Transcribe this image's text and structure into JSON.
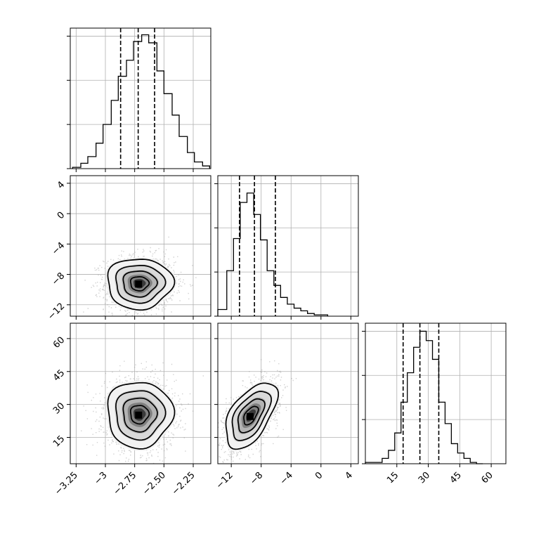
{
  "chart_data": [
    {
      "type": "histogram",
      "panel": "hist-param-1",
      "x_range": [
        -3.3,
        -2.1
      ],
      "x_ticks": [
        -3.25,
        -3.0,
        -2.75,
        -2.5,
        -2.25
      ],
      "grid": true,
      "bin_edges": [
        -3.28,
        -3.21,
        -3.15,
        -3.08,
        -3.02,
        -2.95,
        -2.89,
        -2.82,
        -2.76,
        -2.69,
        -2.63,
        -2.56,
        -2.5,
        -2.43,
        -2.37,
        -2.3,
        -2.24,
        -2.17,
        -2.11
      ],
      "counts": [
        0.01,
        0.04,
        0.09,
        0.19,
        0.33,
        0.51,
        0.69,
        0.81,
        0.95,
        1.0,
        0.94,
        0.73,
        0.56,
        0.4,
        0.24,
        0.12,
        0.05,
        0.02
      ],
      "quantiles": [
        -2.87,
        -2.72,
        -2.58
      ]
    },
    {
      "type": "histogram",
      "panel": "hist-param-2",
      "x_range": [
        -13.8,
        5.0
      ],
      "x_ticks": [
        -12,
        -8,
        -4,
        0,
        4
      ],
      "grid": true,
      "bin_edges": [
        -13.8,
        -12.6,
        -11.7,
        -10.8,
        -9.9,
        -9.0,
        -8.1,
        -7.2,
        -6.3,
        -5.4,
        -4.5,
        -3.6,
        -2.7,
        -1.8,
        -0.9,
        0.0,
        0.9
      ],
      "counts": [
        0.05,
        0.34,
        0.58,
        0.85,
        0.92,
        0.76,
        0.57,
        0.34,
        0.23,
        0.14,
        0.09,
        0.06,
        0.04,
        0.02,
        0.01,
        0.01
      ],
      "quantiles": [
        -10.9,
        -8.9,
        -6.1
      ]
    },
    {
      "type": "histogram",
      "panel": "hist-param-3",
      "x_range": [
        0,
        67
      ],
      "x_ticks": [
        15,
        30,
        45,
        60
      ],
      "grid": true,
      "bin_edges": [
        0,
        8,
        11,
        14,
        17,
        20,
        23,
        26,
        29,
        32,
        35,
        38,
        41,
        44,
        47,
        50,
        53,
        56
      ],
      "counts": [
        0.01,
        0.04,
        0.1,
        0.23,
        0.46,
        0.68,
        0.87,
        0.99,
        0.92,
        0.78,
        0.46,
        0.3,
        0.15,
        0.08,
        0.04,
        0.01,
        0.0
      ],
      "quantiles": [
        18,
        26,
        35
      ]
    },
    {
      "type": "scatter-density",
      "panel": "density-param-2-vs-1",
      "x_range": [
        -3.3,
        -2.1
      ],
      "y_range": [
        -13.5,
        5.0
      ],
      "y_ticks": [
        4,
        0,
        -4,
        -8,
        -12
      ],
      "grid": true,
      "center": [
        -2.71,
        -9.2
      ],
      "spread": [
        0.13,
        1.55
      ],
      "correlation": 0.0,
      "contour_levels": [
        0.5,
        1.0,
        1.5,
        2.0
      ]
    },
    {
      "type": "scatter-density",
      "panel": "density-param-3-vs-1",
      "x_range": [
        -3.3,
        -2.1
      ],
      "y_range": [
        3,
        67
      ],
      "y_ticks": [
        60,
        45,
        30,
        15
      ],
      "grid": true,
      "center": [
        -2.71,
        25.5
      ],
      "spread": [
        0.13,
        7.0
      ],
      "correlation": 0.0,
      "contour_levels": [
        0.5,
        1.0,
        1.5,
        2.0
      ]
    },
    {
      "type": "scatter-density",
      "panel": "density-param-3-vs-2",
      "x_range": [
        -13.8,
        5.0
      ],
      "y_range": [
        3,
        67
      ],
      "grid": true,
      "center": [
        -9.4,
        25.0
      ],
      "spread": [
        1.6,
        7.0
      ],
      "correlation": 0.55,
      "contour_levels": [
        0.5,
        1.0,
        1.5,
        2.0
      ]
    }
  ]
}
